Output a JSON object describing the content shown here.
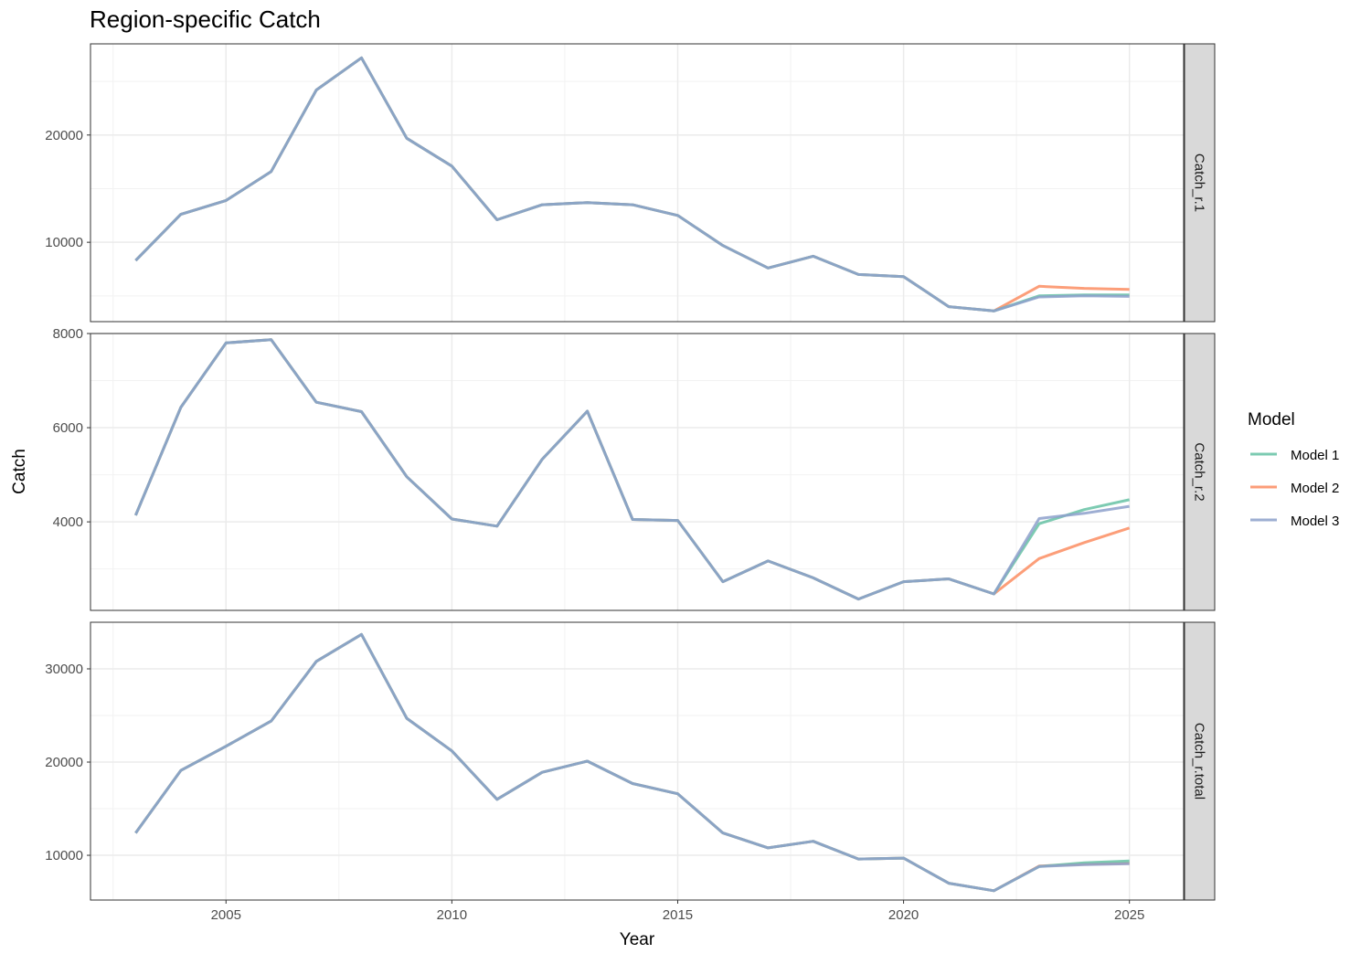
{
  "chart_data": {
    "type": "line",
    "title": "Region-specific Catch",
    "xlabel": "Year",
    "ylabel": "Catch",
    "x_ticks": [
      2005,
      2010,
      2015,
      2020,
      2025
    ],
    "xlim": [
      2002,
      2026.2
    ],
    "grid": true,
    "legend": {
      "title": "Model",
      "position": "right",
      "entries": [
        "Model 1",
        "Model 2",
        "Model 3"
      ]
    },
    "colors": {
      "Model 1": "#66C2A5",
      "Model 2": "#FC8D62",
      "Model 3": "#8DA0CB"
    },
    "panels": [
      {
        "label": "Catch_r.1",
        "ylim": [
          2600,
          28500
        ],
        "y_ticks": [
          10000,
          20000
        ],
        "series": [
          {
            "name": "Model 1",
            "x": [
              2003,
              2004,
              2005,
              2006,
              2007,
              2008,
              2009,
              2010,
              2011,
              2012,
              2013,
              2014,
              2015,
              2016,
              2017,
              2018,
              2019,
              2020,
              2021,
              2022,
              2023,
              2024,
              2025
            ],
            "values": [
              8300,
              12600,
              13900,
              16600,
              24200,
              27200,
              19700,
              17100,
              12100,
              13500,
              13700,
              13500,
              12500,
              9700,
              7600,
              8700,
              7000,
              6800,
              4000,
              3600,
              5000,
              5100,
              5100
            ]
          },
          {
            "name": "Model 2",
            "x": [
              2003,
              2004,
              2005,
              2006,
              2007,
              2008,
              2009,
              2010,
              2011,
              2012,
              2013,
              2014,
              2015,
              2016,
              2017,
              2018,
              2019,
              2020,
              2021,
              2022,
              2023,
              2024,
              2025
            ],
            "values": [
              8300,
              12600,
              13900,
              16600,
              24200,
              27200,
              19700,
              17100,
              12100,
              13500,
              13700,
              13500,
              12500,
              9700,
              7600,
              8700,
              7000,
              6800,
              4000,
              3600,
              5900,
              5700,
              5600
            ]
          },
          {
            "name": "Model 3",
            "x": [
              2003,
              2004,
              2005,
              2006,
              2007,
              2008,
              2009,
              2010,
              2011,
              2012,
              2013,
              2014,
              2015,
              2016,
              2017,
              2018,
              2019,
              2020,
              2021,
              2022,
              2023,
              2024,
              2025
            ],
            "values": [
              8300,
              12600,
              13900,
              16600,
              24200,
              27200,
              19700,
              17100,
              12100,
              13500,
              13700,
              13500,
              12500,
              9700,
              7600,
              8700,
              7000,
              6800,
              4000,
              3600,
              4900,
              5000,
              4950
            ]
          }
        ]
      },
      {
        "label": "Catch_r.2",
        "ylim": [
          2120,
          8000
        ],
        "y_ticks": [
          4000,
          6000,
          8000
        ],
        "series": [
          {
            "name": "Model 1",
            "x": [
              2003,
              2004,
              2005,
              2006,
              2007,
              2008,
              2009,
              2010,
              2011,
              2012,
              2013,
              2014,
              2015,
              2016,
              2017,
              2018,
              2019,
              2020,
              2021,
              2022,
              2023,
              2024,
              2025
            ],
            "values": [
              4140,
              6430,
              7800,
              7870,
              6540,
              6340,
              4960,
              4060,
              3910,
              5330,
              6350,
              4050,
              4030,
              2730,
              3170,
              2810,
              2360,
              2730,
              2790,
              2470,
              3960,
              4260,
              4470
            ]
          },
          {
            "name": "Model 2",
            "x": [
              2003,
              2004,
              2005,
              2006,
              2007,
              2008,
              2009,
              2010,
              2011,
              2012,
              2013,
              2014,
              2015,
              2016,
              2017,
              2018,
              2019,
              2020,
              2021,
              2022,
              2023,
              2024,
              2025
            ],
            "values": [
              4140,
              6430,
              7800,
              7870,
              6540,
              6340,
              4960,
              4060,
              3910,
              5330,
              6350,
              4050,
              4030,
              2730,
              3170,
              2810,
              2360,
              2730,
              2790,
              2470,
              3220,
              3560,
              3870
            ]
          },
          {
            "name": "Model 3",
            "x": [
              2003,
              2004,
              2005,
              2006,
              2007,
              2008,
              2009,
              2010,
              2011,
              2012,
              2013,
              2014,
              2015,
              2016,
              2017,
              2018,
              2019,
              2020,
              2021,
              2022,
              2023,
              2024,
              2025
            ],
            "values": [
              4140,
              6430,
              7800,
              7870,
              6540,
              6340,
              4960,
              4060,
              3910,
              5330,
              6350,
              4050,
              4030,
              2730,
              3170,
              2810,
              2360,
              2730,
              2790,
              2470,
              4070,
              4180,
              4330
            ]
          }
        ]
      },
      {
        "label": "Catch_r.total",
        "ylim": [
          5200,
          35000
        ],
        "y_ticks": [
          10000,
          20000,
          30000
        ],
        "series": [
          {
            "name": "Model 1",
            "x": [
              2003,
              2004,
              2005,
              2006,
              2007,
              2008,
              2009,
              2010,
              2011,
              2012,
              2013,
              2014,
              2015,
              2016,
              2017,
              2018,
              2019,
              2020,
              2021,
              2022,
              2023,
              2024,
              2025
            ],
            "values": [
              12400,
              19100,
              21700,
              24400,
              30800,
              33700,
              24700,
              21200,
              16000,
              18900,
              20100,
              17700,
              16600,
              12400,
              10800,
              11500,
              9600,
              9700,
              7000,
              6200,
              8800,
              9200,
              9400
            ]
          },
          {
            "name": "Model 2",
            "x": [
              2003,
              2004,
              2005,
              2006,
              2007,
              2008,
              2009,
              2010,
              2011,
              2012,
              2013,
              2014,
              2015,
              2016,
              2017,
              2018,
              2019,
              2020,
              2021,
              2022,
              2023,
              2024,
              2025
            ],
            "values": [
              12400,
              19100,
              21700,
              24400,
              30800,
              33700,
              24700,
              21200,
              16000,
              18900,
              20100,
              17700,
              16600,
              12400,
              10800,
              11500,
              9600,
              9700,
              7000,
              6200,
              8850,
              9050,
              9150
            ]
          },
          {
            "name": "Model 3",
            "x": [
              2003,
              2004,
              2005,
              2006,
              2007,
              2008,
              2009,
              2010,
              2011,
              2012,
              2013,
              2014,
              2015,
              2016,
              2017,
              2018,
              2019,
              2020,
              2021,
              2022,
              2023,
              2024,
              2025
            ],
            "values": [
              12400,
              19100,
              21700,
              24400,
              30800,
              33700,
              24700,
              21200,
              16000,
              18900,
              20100,
              17700,
              16600,
              12400,
              10800,
              11500,
              9600,
              9700,
              7000,
              6200,
              8800,
              9000,
              9100
            ]
          }
        ]
      }
    ]
  }
}
